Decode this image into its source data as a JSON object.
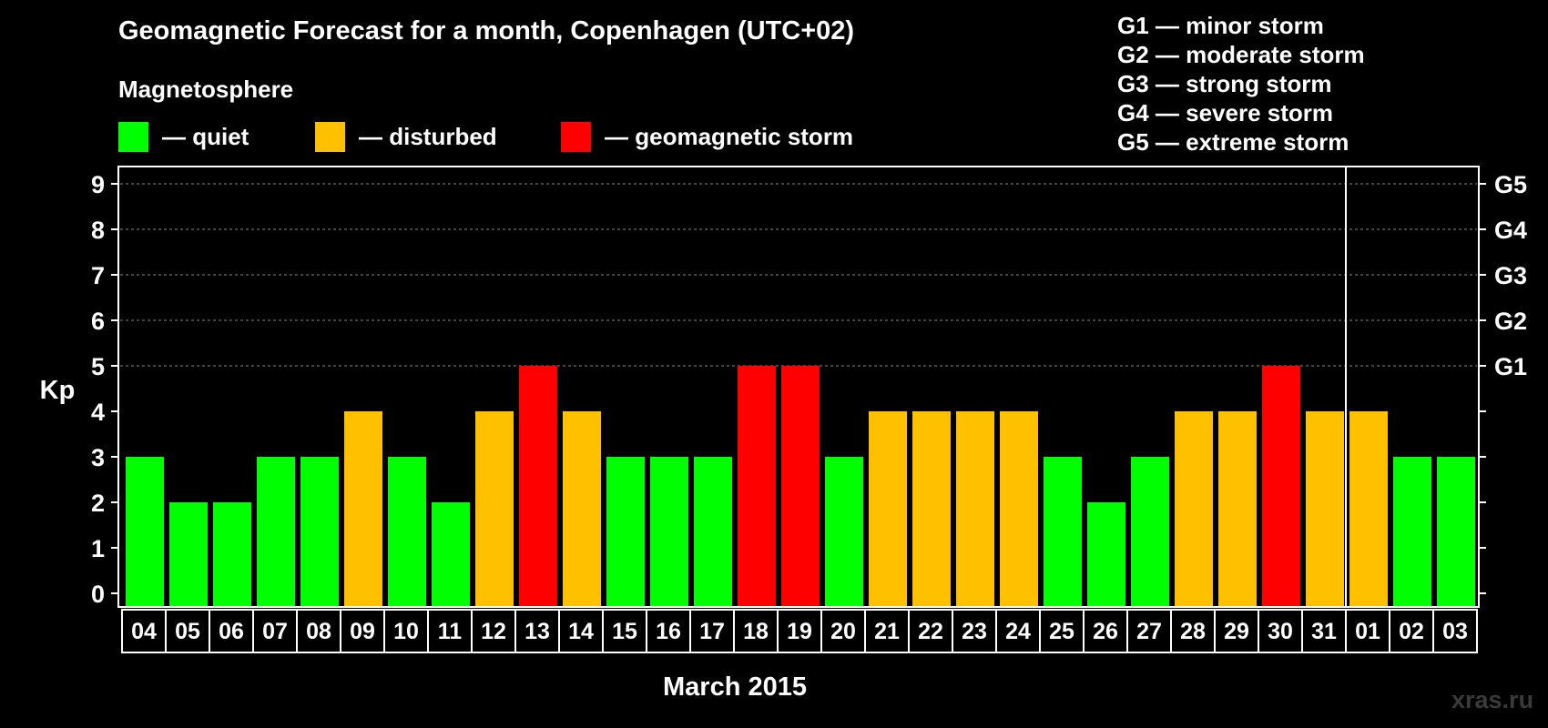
{
  "title": "Geomagnetic Forecast for a month, Copenhagen (UTC+02)",
  "subtitle": "Magnetosphere",
  "legend": [
    {
      "label": "— quiet",
      "color": "#00ff00"
    },
    {
      "label": "— disturbed",
      "color": "#ffc000"
    },
    {
      "label": "— geomagnetic storm",
      "color": "#ff0000"
    }
  ],
  "g_legend": [
    "G1 — minor storm",
    "G2 — moderate storm",
    "G3 — strong storm",
    "G4 — severe storm",
    "G5 — extreme storm"
  ],
  "watermark": "xras.ru",
  "chart_data": {
    "type": "bar",
    "title": "Geomagnetic Forecast for a month, Copenhagen (UTC+02)",
    "xlabel": "March 2015",
    "ylabel": "Kp",
    "ylim": [
      0,
      9
    ],
    "yticks": [
      "0",
      "1",
      "2",
      "3",
      "4",
      "5",
      "6",
      "7",
      "8",
      "9"
    ],
    "right_axis_labels": [
      {
        "kp": 5,
        "label": "G1"
      },
      {
        "kp": 6,
        "label": "G2"
      },
      {
        "kp": 7,
        "label": "G3"
      },
      {
        "kp": 8,
        "label": "G4"
      },
      {
        "kp": 9,
        "label": "G5"
      }
    ],
    "grid": "dashed horizontal lines at Kp 5 through 9",
    "month_divider_after": "31",
    "categories": [
      "04",
      "05",
      "06",
      "07",
      "08",
      "09",
      "10",
      "11",
      "12",
      "13",
      "14",
      "15",
      "16",
      "17",
      "18",
      "19",
      "20",
      "21",
      "22",
      "23",
      "24",
      "25",
      "26",
      "27",
      "28",
      "29",
      "30",
      "31",
      "01",
      "02",
      "03"
    ],
    "values": [
      3,
      2,
      2,
      3,
      3,
      4,
      3,
      2,
      4,
      5,
      4,
      3,
      3,
      3,
      5,
      5,
      3,
      4,
      4,
      4,
      4,
      3,
      2,
      3,
      4,
      4,
      5,
      4,
      4,
      3,
      3
    ],
    "colors": {
      "quiet": "#00ff00",
      "disturbed": "#ffc000",
      "storm": "#ff0000"
    },
    "color_rule": "Kp<=3 quiet, Kp=4 disturbed, Kp>=5 storm"
  }
}
